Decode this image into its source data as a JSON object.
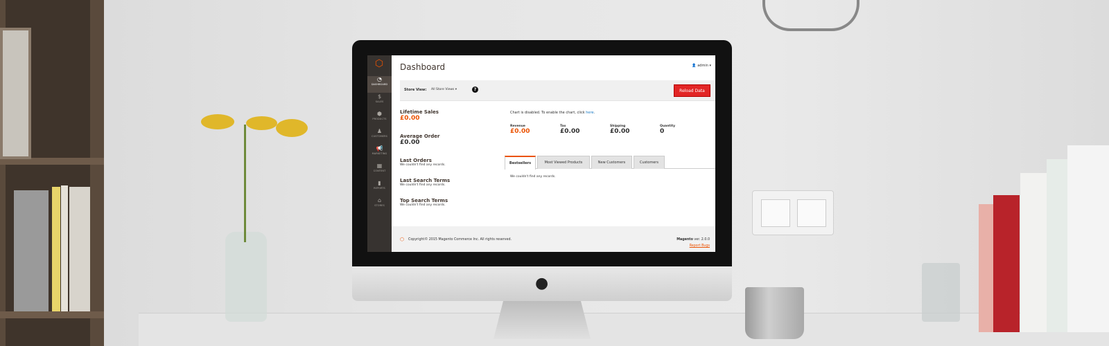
{
  "app": {
    "title": "Dashboard",
    "user": "admin"
  },
  "sidebar": {
    "items": [
      {
        "label": "DASHBOARD",
        "icon": "gauge-icon",
        "glyph": "◔"
      },
      {
        "label": "SALES",
        "icon": "dollar-icon",
        "glyph": "$"
      },
      {
        "label": "PRODUCTS",
        "icon": "box-icon",
        "glyph": "⬢"
      },
      {
        "label": "CUSTOMERS",
        "icon": "person-icon",
        "glyph": "♟"
      },
      {
        "label": "MARKETING",
        "icon": "megaphone-icon",
        "glyph": "📢"
      },
      {
        "label": "CONTENT",
        "icon": "layout-icon",
        "glyph": "▦"
      },
      {
        "label": "REPORTS",
        "icon": "bar-chart-icon",
        "glyph": "▮"
      },
      {
        "label": "STORES",
        "icon": "store-icon",
        "glyph": "⌂"
      }
    ]
  },
  "toolbar": {
    "store_view_label": "Store View:",
    "store_view_value": "All Store Views",
    "help": "?",
    "reload_label": "Reload Data"
  },
  "left": {
    "lifetime_sales_label": "Lifetime Sales",
    "lifetime_sales": "£0.00",
    "average_order_label": "Average Order",
    "average_order": "£0.00",
    "last_orders_label": "Last Orders",
    "last_orders_empty": "We couldn't find any records.",
    "last_search_label": "Last Search Terms",
    "last_search_empty": "We couldn't find any records.",
    "top_search_label": "Top Search Terms",
    "top_search_empty": "We couldn't find any records."
  },
  "chart_notice": {
    "text": "Chart is disabled. To enable the chart, click ",
    "link": "here",
    "end": "."
  },
  "totals": [
    {
      "label": "Revenue",
      "value": "£0.00"
    },
    {
      "label": "Tax",
      "value": "£0.00"
    },
    {
      "label": "Shipping",
      "value": "£0.00"
    },
    {
      "label": "Quantity",
      "value": "0"
    }
  ],
  "tabs": [
    {
      "label": "Bestsellers",
      "active": true
    },
    {
      "label": "Most Viewed Products"
    },
    {
      "label": "New Customers"
    },
    {
      "label": "Customers"
    }
  ],
  "tab_content": "We couldn't find any records.",
  "footer": {
    "copyright": "Copyright© 2015 Magento Commerce Inc. All rights reserved.",
    "brand": "Magento",
    "version": " ver. 2.0.0",
    "report": "Report Bugs"
  },
  "colors": {
    "accent": "#eb5202",
    "button": "#e22626",
    "sidebar": "#373330"
  }
}
